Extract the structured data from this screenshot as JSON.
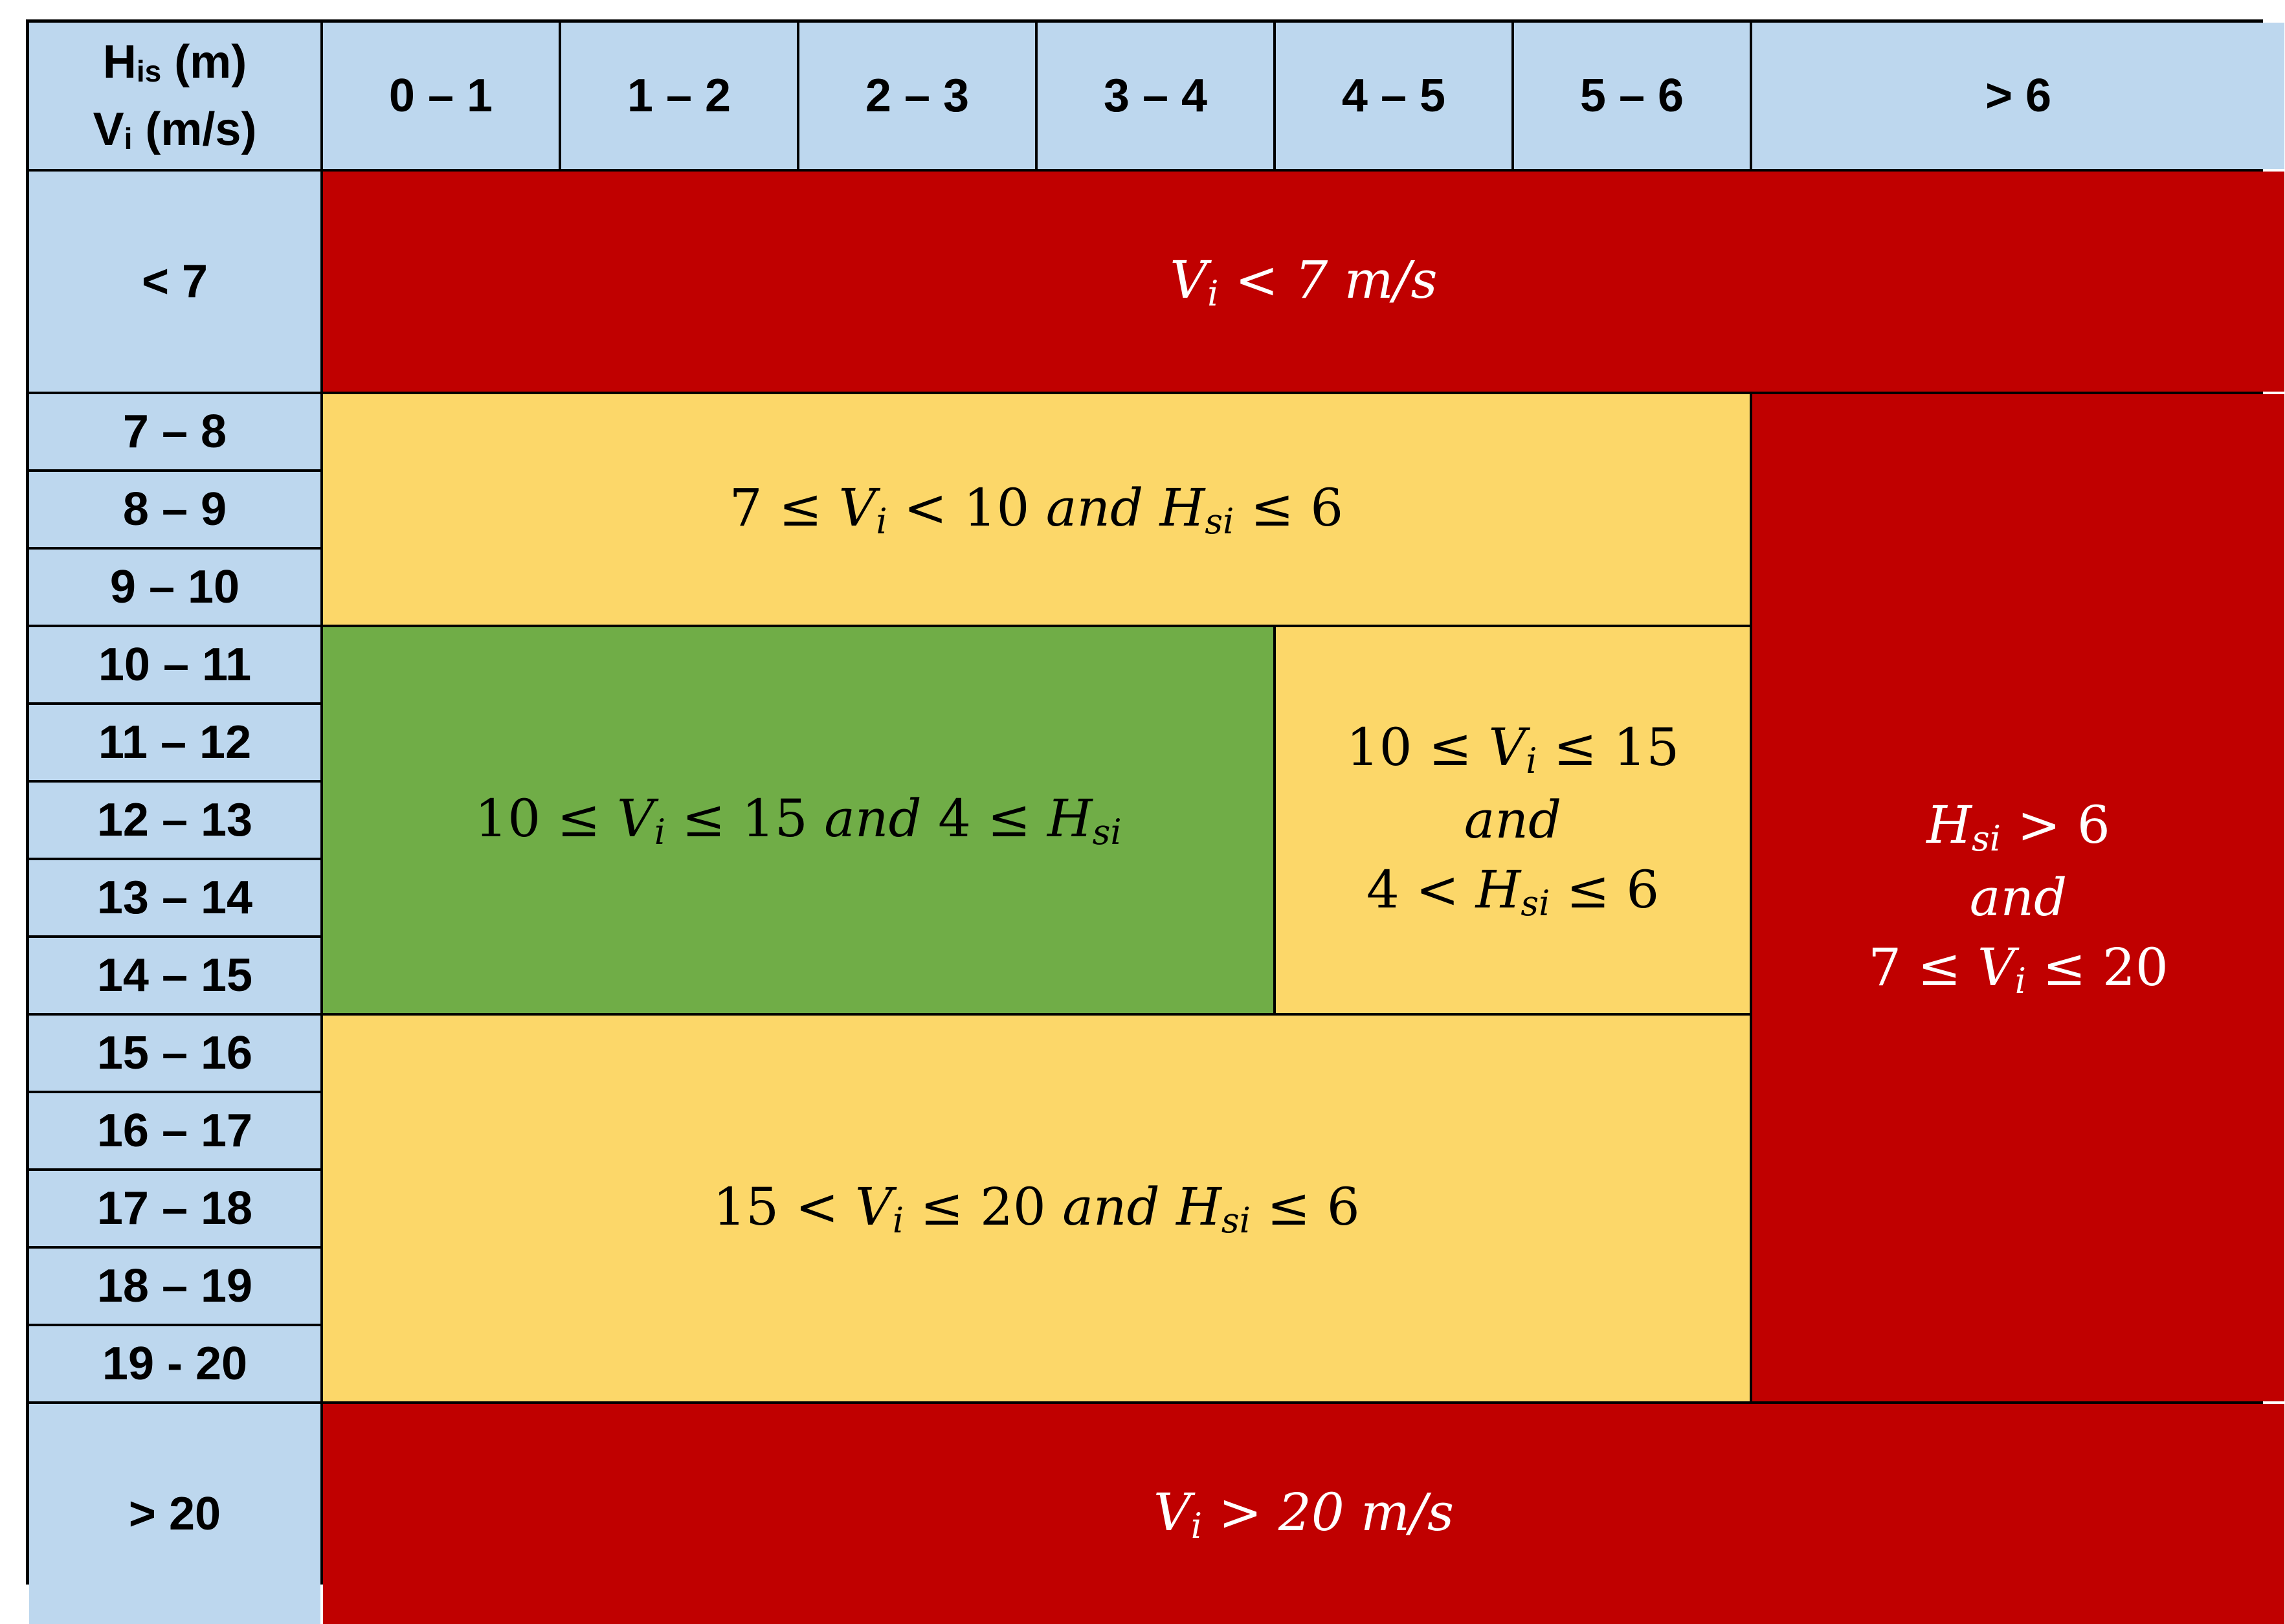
{
  "corner": {
    "line1_main": "H",
    "line1_sub": "is",
    "line1_unit": " (m)",
    "line2_main": "V",
    "line2_sub": "i",
    "line2_unit": " (m/s)"
  },
  "column_headers": [
    "0 – 1",
    "1 – 2",
    "2 – 3",
    "3 – 4",
    "4 – 5",
    "5 – 6",
    "> 6"
  ],
  "row_headers": [
    "< 7",
    "7 – 8",
    "8 – 9",
    "9 – 10",
    "10 – 11",
    "11 – 12",
    "12 – 13",
    "13 – 14",
    "14 – 15",
    "15 – 16",
    "16 – 17",
    "17 – 18",
    "18 – 19",
    "19 - 20",
    "> 20"
  ],
  "regions": {
    "low_speed": {
      "v": "V",
      "sub": "i",
      "rest": " < 7  m/s",
      "color": "#C00000"
    },
    "band_7_10": {
      "a": "7 ≤ ",
      "v": "V",
      "sub": "i",
      "b": " < 10  ",
      "and": "and",
      "h": " H",
      "hsub": "si",
      "c": " ≤ 6",
      "color": "#FCD769"
    },
    "optimal": {
      "a": "10 ≤ ",
      "v": "V",
      "sub": "i",
      "b": " ≤ 15  ",
      "and": "and",
      "c": " 4 ≤ ",
      "h": "H",
      "hsub": "si",
      "color": "#70AD47"
    },
    "mid_band": {
      "line1_a": "10 ≤ ",
      "line1_v": "V",
      "line1_sub": "i",
      "line1_b": " ≤ 15",
      "line2": "and",
      "line3_a": "4 < ",
      "line3_h": "H",
      "line3_sub": "si",
      "line3_b": " ≤ 6",
      "color": "#FCD769"
    },
    "high_waves": {
      "line1_h": "H",
      "line1_sub": "si",
      "line1_b": " > 6",
      "line2": "and",
      "line3_a": "7 ≤ ",
      "line3_v": "V",
      "line3_sub": "i",
      "line3_b": " ≤ 20",
      "color": "#C00000"
    },
    "band_15_20": {
      "a": "15 < ",
      "v": "V",
      "sub": "i",
      "b": " ≤ 20 ",
      "and": "and",
      "h": " H",
      "hsub": "si",
      "c": " ≤ 6",
      "color": "#FCD769"
    },
    "high_speed": {
      "v": "V",
      "sub": "i",
      "rest": " > 20  m/s",
      "color": "#C00000"
    }
  },
  "header_color": "#BDD7EE"
}
